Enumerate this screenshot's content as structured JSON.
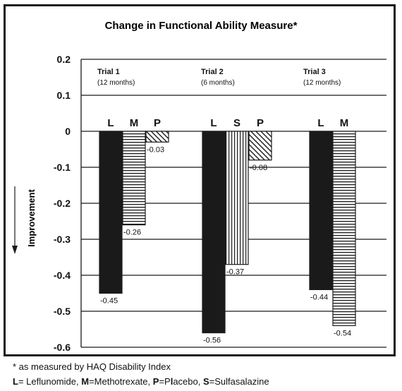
{
  "chart_data": {
    "type": "bar",
    "title": "Change in Functional Ability Measure*",
    "ylabel": "Improvement",
    "ylim": [
      -0.6,
      0.2
    ],
    "yticks": [
      "0.2",
      "0.1",
      "0",
      "-0.1",
      "-0.2",
      "-0.3",
      "-0.4",
      "-0.5",
      "-0.6"
    ],
    "grid": true,
    "groups": [
      {
        "name": "Trial 1",
        "duration": "(12 months)",
        "bars": [
          {
            "letter": "L",
            "value": -0.45,
            "label": "-0.45",
            "pattern": "solid"
          },
          {
            "letter": "M",
            "value": -0.26,
            "label": "-0.26",
            "pattern": "horizontal"
          },
          {
            "letter": "P",
            "value": -0.03,
            "label": "-0.03",
            "pattern": "diagonal"
          }
        ]
      },
      {
        "name": "Trial 2",
        "duration": "(6 months)",
        "bars": [
          {
            "letter": "L",
            "value": -0.56,
            "label": "-0.56",
            "pattern": "solid"
          },
          {
            "letter": "S",
            "value": -0.37,
            "label": "-0.37",
            "pattern": "vertical"
          },
          {
            "letter": "P",
            "value": -0.08,
            "label": "-0.08",
            "pattern": "diagonal"
          }
        ]
      },
      {
        "name": "Trial 3",
        "duration": "(12 months)",
        "bars": [
          {
            "letter": "L",
            "value": -0.44,
            "label": "-0.44",
            "pattern": "solid"
          },
          {
            "letter": "M",
            "value": -0.54,
            "label": "-0.54",
            "pattern": "horizontal"
          }
        ]
      }
    ]
  },
  "footnotes": {
    "asterisk_note": "* as measured by HAQ Disability Index",
    "legend": [
      {
        "bold": "L",
        "text": "= Leflunomide, "
      },
      {
        "bold": "M",
        "text": "=Methotrexate, "
      },
      {
        "bold": "P",
        "text": "=P"
      },
      {
        "bold": "l",
        "text": "acebo, "
      },
      {
        "bold": "S",
        "text": "=Sulfasalazine"
      }
    ]
  },
  "colors": {
    "bar_fill": "#1a1a1a",
    "grid": "#1a1a1a",
    "background": "#ffffff"
  }
}
